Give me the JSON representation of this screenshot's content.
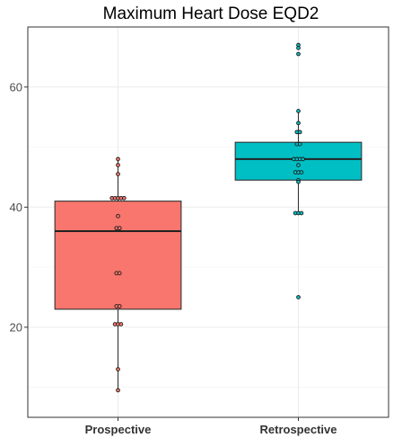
{
  "chart_data": {
    "type": "box",
    "title": "Maximum Heart Dose EQD2",
    "xlabel": "",
    "ylabel": "",
    "ylim": [
      5,
      70
    ],
    "yticks": [
      20,
      40,
      60
    ],
    "grid": true,
    "legend": "none",
    "categories": [
      "Prospective",
      "Retrospective"
    ],
    "series": [
      {
        "category": "Prospective",
        "color": "#F8766D",
        "q1": 23,
        "median": 36,
        "q3": 41,
        "whisker_low": 9.5,
        "whisker_high": 48,
        "points": [
          48,
          47,
          45.5,
          41.5,
          41.5,
          41.5,
          41.5,
          41.5,
          38.5,
          36.5,
          36.5,
          29,
          29,
          23.5,
          23.5,
          20.5,
          20.5,
          20.5,
          13,
          9.5
        ]
      },
      {
        "category": "Retrospective",
        "color": "#00BFC4",
        "q1": 44.5,
        "median": 48,
        "q3": 50.8,
        "whisker_low": 39,
        "whisker_high": 56,
        "points": [
          67,
          66.5,
          65.5,
          56,
          54,
          52.5,
          52.5,
          50.5,
          50.5,
          48,
          48,
          48,
          48,
          47,
          45.8,
          45.8,
          45.8,
          44.5,
          44.2,
          39,
          39,
          39,
          25
        ]
      }
    ]
  }
}
